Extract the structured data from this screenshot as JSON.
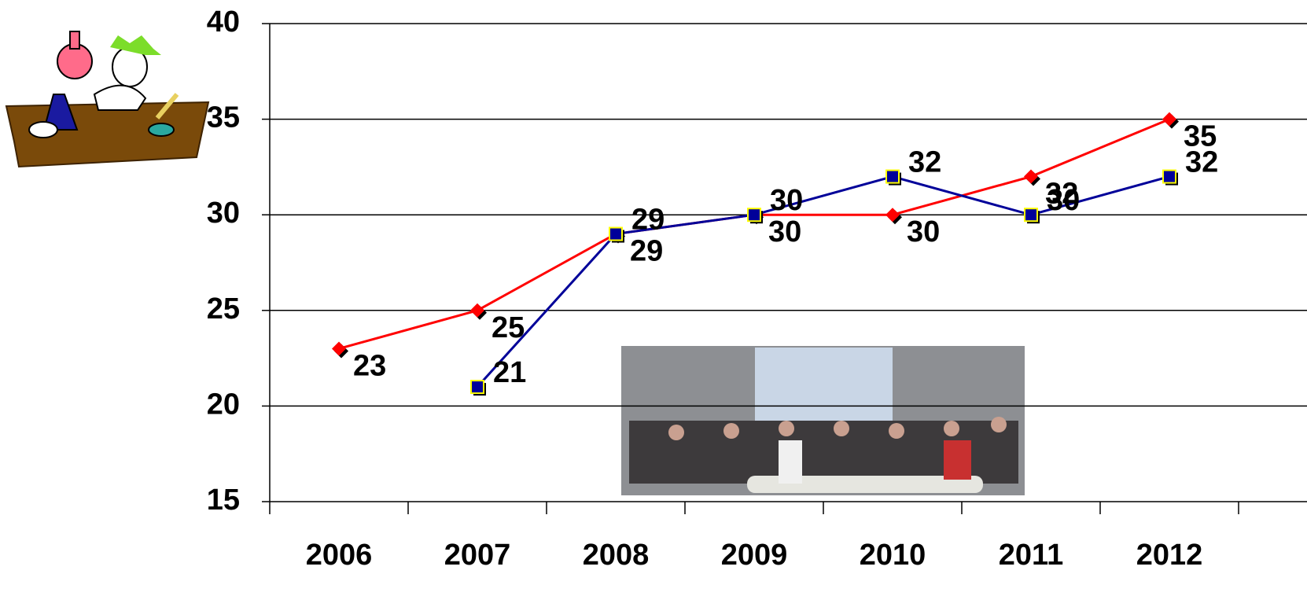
{
  "chart_data": {
    "type": "line",
    "categories": [
      "2006",
      "2007",
      "2008",
      "2009",
      "2010",
      "2011",
      "2012"
    ],
    "series": [
      {
        "color": "#ff0000",
        "marker": "diamond",
        "values": [
          23,
          25,
          29,
          30,
          30,
          32,
          35
        ]
      },
      {
        "color": "#000099",
        "marker": "square",
        "values": [
          null,
          21,
          29,
          30,
          32,
          30,
          32
        ]
      }
    ],
    "ylim": [
      15,
      40
    ],
    "yticks": [
      15,
      20,
      25,
      30,
      35,
      40
    ],
    "grid": true,
    "data_labels": true
  }
}
